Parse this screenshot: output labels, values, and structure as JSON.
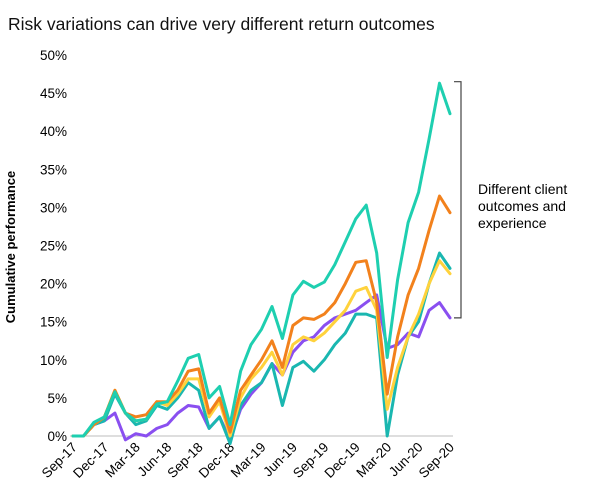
{
  "chart_data": {
    "type": "line",
    "title": "Risk variations can drive very different return outcomes",
    "ylabel": "Cumulative performance",
    "xlabel": "",
    "ylim": [
      0,
      50
    ],
    "yticks": [
      "0%",
      "5%",
      "10%",
      "15%",
      "20%",
      "25%",
      "30%",
      "35%",
      "40%",
      "45%",
      "50%"
    ],
    "x_tick_labels": [
      "Sep-17",
      "Dec-17",
      "Mar-18",
      "Jun-18",
      "Sep-18",
      "Dec-18",
      "Mar-19",
      "Jun-19",
      "Sep-19",
      "Dec-19",
      "Mar-20",
      "Jun-20",
      "Sep-20"
    ],
    "x_tick_positions": [
      0,
      3,
      6,
      9,
      12,
      15,
      18,
      21,
      24,
      27,
      30,
      33,
      36
    ],
    "grid": false,
    "annotation": {
      "lines": [
        "Different client",
        "outcomes and",
        "experience"
      ],
      "bracket_range": [
        15.5,
        46.5
      ]
    },
    "series": [
      {
        "color": "#8a4ff0",
        "values": [
          0,
          0,
          1.5,
          2,
          3,
          -0.5,
          0.3,
          0,
          1,
          1.5,
          3,
          4,
          3.8,
          1,
          2.5,
          -0.5,
          3.5,
          5.5,
          7,
          9.5,
          8,
          11,
          12.5,
          13,
          14.5,
          15.5,
          16,
          16.5,
          17.5,
          18.5,
          11.5,
          12,
          13.5,
          13,
          16.5,
          17.5,
          15.5
        ]
      },
      {
        "color": "#1ab7b0",
        "values": [
          0,
          0,
          1.5,
          2,
          5.5,
          3,
          1.5,
          2,
          4,
          3.5,
          5,
          7,
          6,
          1,
          2.5,
          -1,
          4,
          6,
          7,
          9.5,
          4,
          9,
          9.8,
          8.5,
          10,
          12,
          13.5,
          16,
          16,
          15.5,
          0,
          8,
          13,
          15,
          20,
          24,
          22
        ]
      },
      {
        "color": "#ffd23c",
        "values": [
          0,
          0,
          1.5,
          2.5,
          6,
          3,
          2,
          2.2,
          4.5,
          4,
          5.5,
          7.5,
          7.5,
          2.5,
          4.5,
          0,
          5,
          7.5,
          9,
          11,
          8,
          12,
          13,
          12.5,
          13.5,
          15,
          16.5,
          19,
          19.5,
          16.5,
          3.5,
          9,
          13,
          16,
          20,
          23,
          21.3
        ]
      },
      {
        "color": "#f2811c",
        "values": [
          0,
          0,
          1.5,
          2.5,
          6,
          3,
          2.5,
          2.8,
          4.5,
          4.5,
          6,
          8.5,
          8.8,
          3,
          5,
          0.5,
          6,
          8,
          10,
          12.5,
          9,
          14.5,
          15.5,
          15.3,
          16,
          17.5,
          20,
          22.8,
          23,
          17.5,
          5.5,
          13,
          18.5,
          22,
          27,
          31.5,
          29.3
        ]
      },
      {
        "color": "#1ecfb0",
        "values": [
          0,
          0,
          1.8,
          2.5,
          5.8,
          3,
          2,
          2.2,
          4.2,
          4.5,
          7.2,
          10.2,
          10.7,
          5,
          6.5,
          1.5,
          8.5,
          12,
          14,
          17,
          12.8,
          18.5,
          20.3,
          19.5,
          20.2,
          22.5,
          25.5,
          28.5,
          30.3,
          24,
          10.3,
          20.5,
          28,
          32,
          39,
          46.3,
          42.3
        ]
      }
    ]
  }
}
